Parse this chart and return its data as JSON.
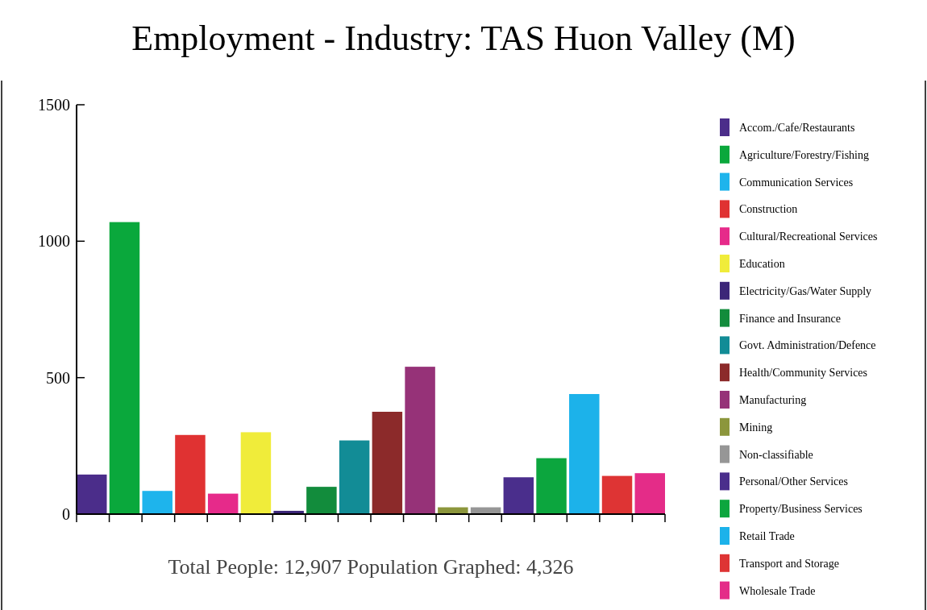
{
  "chart_data": {
    "type": "bar",
    "title": "Employment - Industry: TAS Huon Valley (M)",
    "categories": [
      null,
      null,
      null,
      null,
      null,
      null,
      null,
      null,
      null,
      null,
      null,
      null,
      null,
      null,
      null,
      null,
      null,
      null
    ],
    "stacked": true,
    "series": [
      {
        "name": "Accom./Cafe/Restaurants",
        "color": "#4b2d8a",
        "values": [
          145,
          null,
          null,
          null,
          null,
          null,
          null,
          null,
          null,
          null,
          null,
          null,
          null,
          null,
          null,
          null,
          null,
          null
        ]
      },
      {
        "name": "Agriculture/Forestry/Fishing",
        "color": "#0aa83c",
        "values": [
          null,
          1070,
          null,
          null,
          null,
          null,
          null,
          null,
          null,
          null,
          null,
          null,
          null,
          null,
          null,
          null,
          null,
          null
        ]
      },
      {
        "name": "Communication Services",
        "color": "#1eb4ec",
        "values": [
          null,
          null,
          85,
          null,
          null,
          null,
          null,
          null,
          null,
          null,
          null,
          null,
          null,
          null,
          null,
          null,
          null,
          null
        ]
      },
      {
        "name": "Construction",
        "color": "#e03232",
        "values": [
          null,
          null,
          null,
          290,
          null,
          null,
          null,
          null,
          null,
          null,
          null,
          null,
          null,
          null,
          null,
          null,
          null,
          null
        ]
      },
      {
        "name": "Cultural/Recreational Services",
        "color": "#e62a8a",
        "values": [
          null,
          null,
          null,
          null,
          75,
          null,
          null,
          null,
          null,
          null,
          null,
          null,
          null,
          null,
          null,
          null,
          null,
          null
        ]
      },
      {
        "name": "Education",
        "color": "#f0ec3a",
        "values": [
          null,
          null,
          null,
          null,
          null,
          300,
          null,
          null,
          null,
          null,
          null,
          null,
          null,
          null,
          null,
          null,
          null,
          null
        ]
      },
      {
        "name": "Electricity/Gas/Water Supply",
        "color": "#3c2678",
        "values": [
          null,
          null,
          null,
          null,
          null,
          null,
          12,
          null,
          null,
          null,
          null,
          null,
          null,
          null,
          null,
          null,
          null,
          null
        ]
      },
      {
        "name": "Finance and Insurance",
        "color": "#128c3c",
        "values": [
          null,
          null,
          null,
          null,
          null,
          null,
          null,
          100,
          null,
          null,
          null,
          null,
          null,
          null,
          null,
          null,
          null,
          null
        ]
      },
      {
        "name": "Govt. Administration/Defence",
        "color": "#128c96",
        "values": [
          null,
          null,
          null,
          null,
          null,
          null,
          null,
          null,
          270,
          null,
          null,
          null,
          null,
          null,
          null,
          null,
          null,
          null
        ]
      },
      {
        "name": "Health/Community Services",
        "color": "#8c2a2a",
        "values": [
          null,
          null,
          null,
          null,
          null,
          null,
          null,
          null,
          null,
          375,
          null,
          null,
          null,
          null,
          null,
          null,
          null,
          null
        ]
      },
      {
        "name": "Manufacturing",
        "color": "#963278",
        "values": [
          null,
          null,
          null,
          null,
          null,
          null,
          null,
          null,
          null,
          null,
          540,
          null,
          null,
          null,
          null,
          null,
          null,
          null
        ]
      },
      {
        "name": "Mining",
        "color": "#8c963c",
        "values": [
          null,
          null,
          null,
          null,
          null,
          null,
          null,
          null,
          null,
          null,
          null,
          25,
          null,
          null,
          null,
          null,
          null,
          null
        ]
      },
      {
        "name": "Non-classifiable",
        "color": "#969696",
        "values": [
          null,
          null,
          null,
          null,
          null,
          null,
          null,
          null,
          null,
          null,
          null,
          null,
          25,
          null,
          null,
          null,
          null,
          null
        ]
      },
      {
        "name": "Personal/Other Services",
        "color": "#4a2e8c",
        "values": [
          null,
          null,
          null,
          null,
          null,
          null,
          null,
          null,
          null,
          null,
          null,
          null,
          null,
          135,
          null,
          null,
          null,
          null
        ]
      },
      {
        "name": "Property/Business Services",
        "color": "#0ca63e",
        "values": [
          null,
          null,
          null,
          null,
          null,
          null,
          null,
          null,
          null,
          null,
          null,
          null,
          null,
          null,
          205,
          null,
          null,
          null
        ]
      },
      {
        "name": "Retail Trade",
        "color": "#1cb2ea",
        "values": [
          null,
          null,
          null,
          null,
          null,
          null,
          null,
          null,
          null,
          null,
          null,
          null,
          null,
          null,
          null,
          440,
          null,
          null
        ]
      },
      {
        "name": "Transport and Storage",
        "color": "#de3434",
        "values": [
          null,
          null,
          null,
          null,
          null,
          null,
          null,
          null,
          null,
          null,
          null,
          null,
          null,
          null,
          null,
          null,
          140,
          null
        ]
      },
      {
        "name": "Wholesale Trade",
        "color": "#e42c88",
        "values": [
          null,
          null,
          null,
          null,
          null,
          null,
          null,
          null,
          null,
          null,
          null,
          null,
          null,
          null,
          null,
          null,
          null,
          150
        ]
      }
    ],
    "ylim": [
      0,
      1500
    ],
    "yticks": [
      0,
      500,
      1000,
      1500
    ],
    "tick_labels": "y",
    "legend": "right",
    "annotations": [
      "Total People: 12,907 Population Graphed: 4,326"
    ]
  }
}
